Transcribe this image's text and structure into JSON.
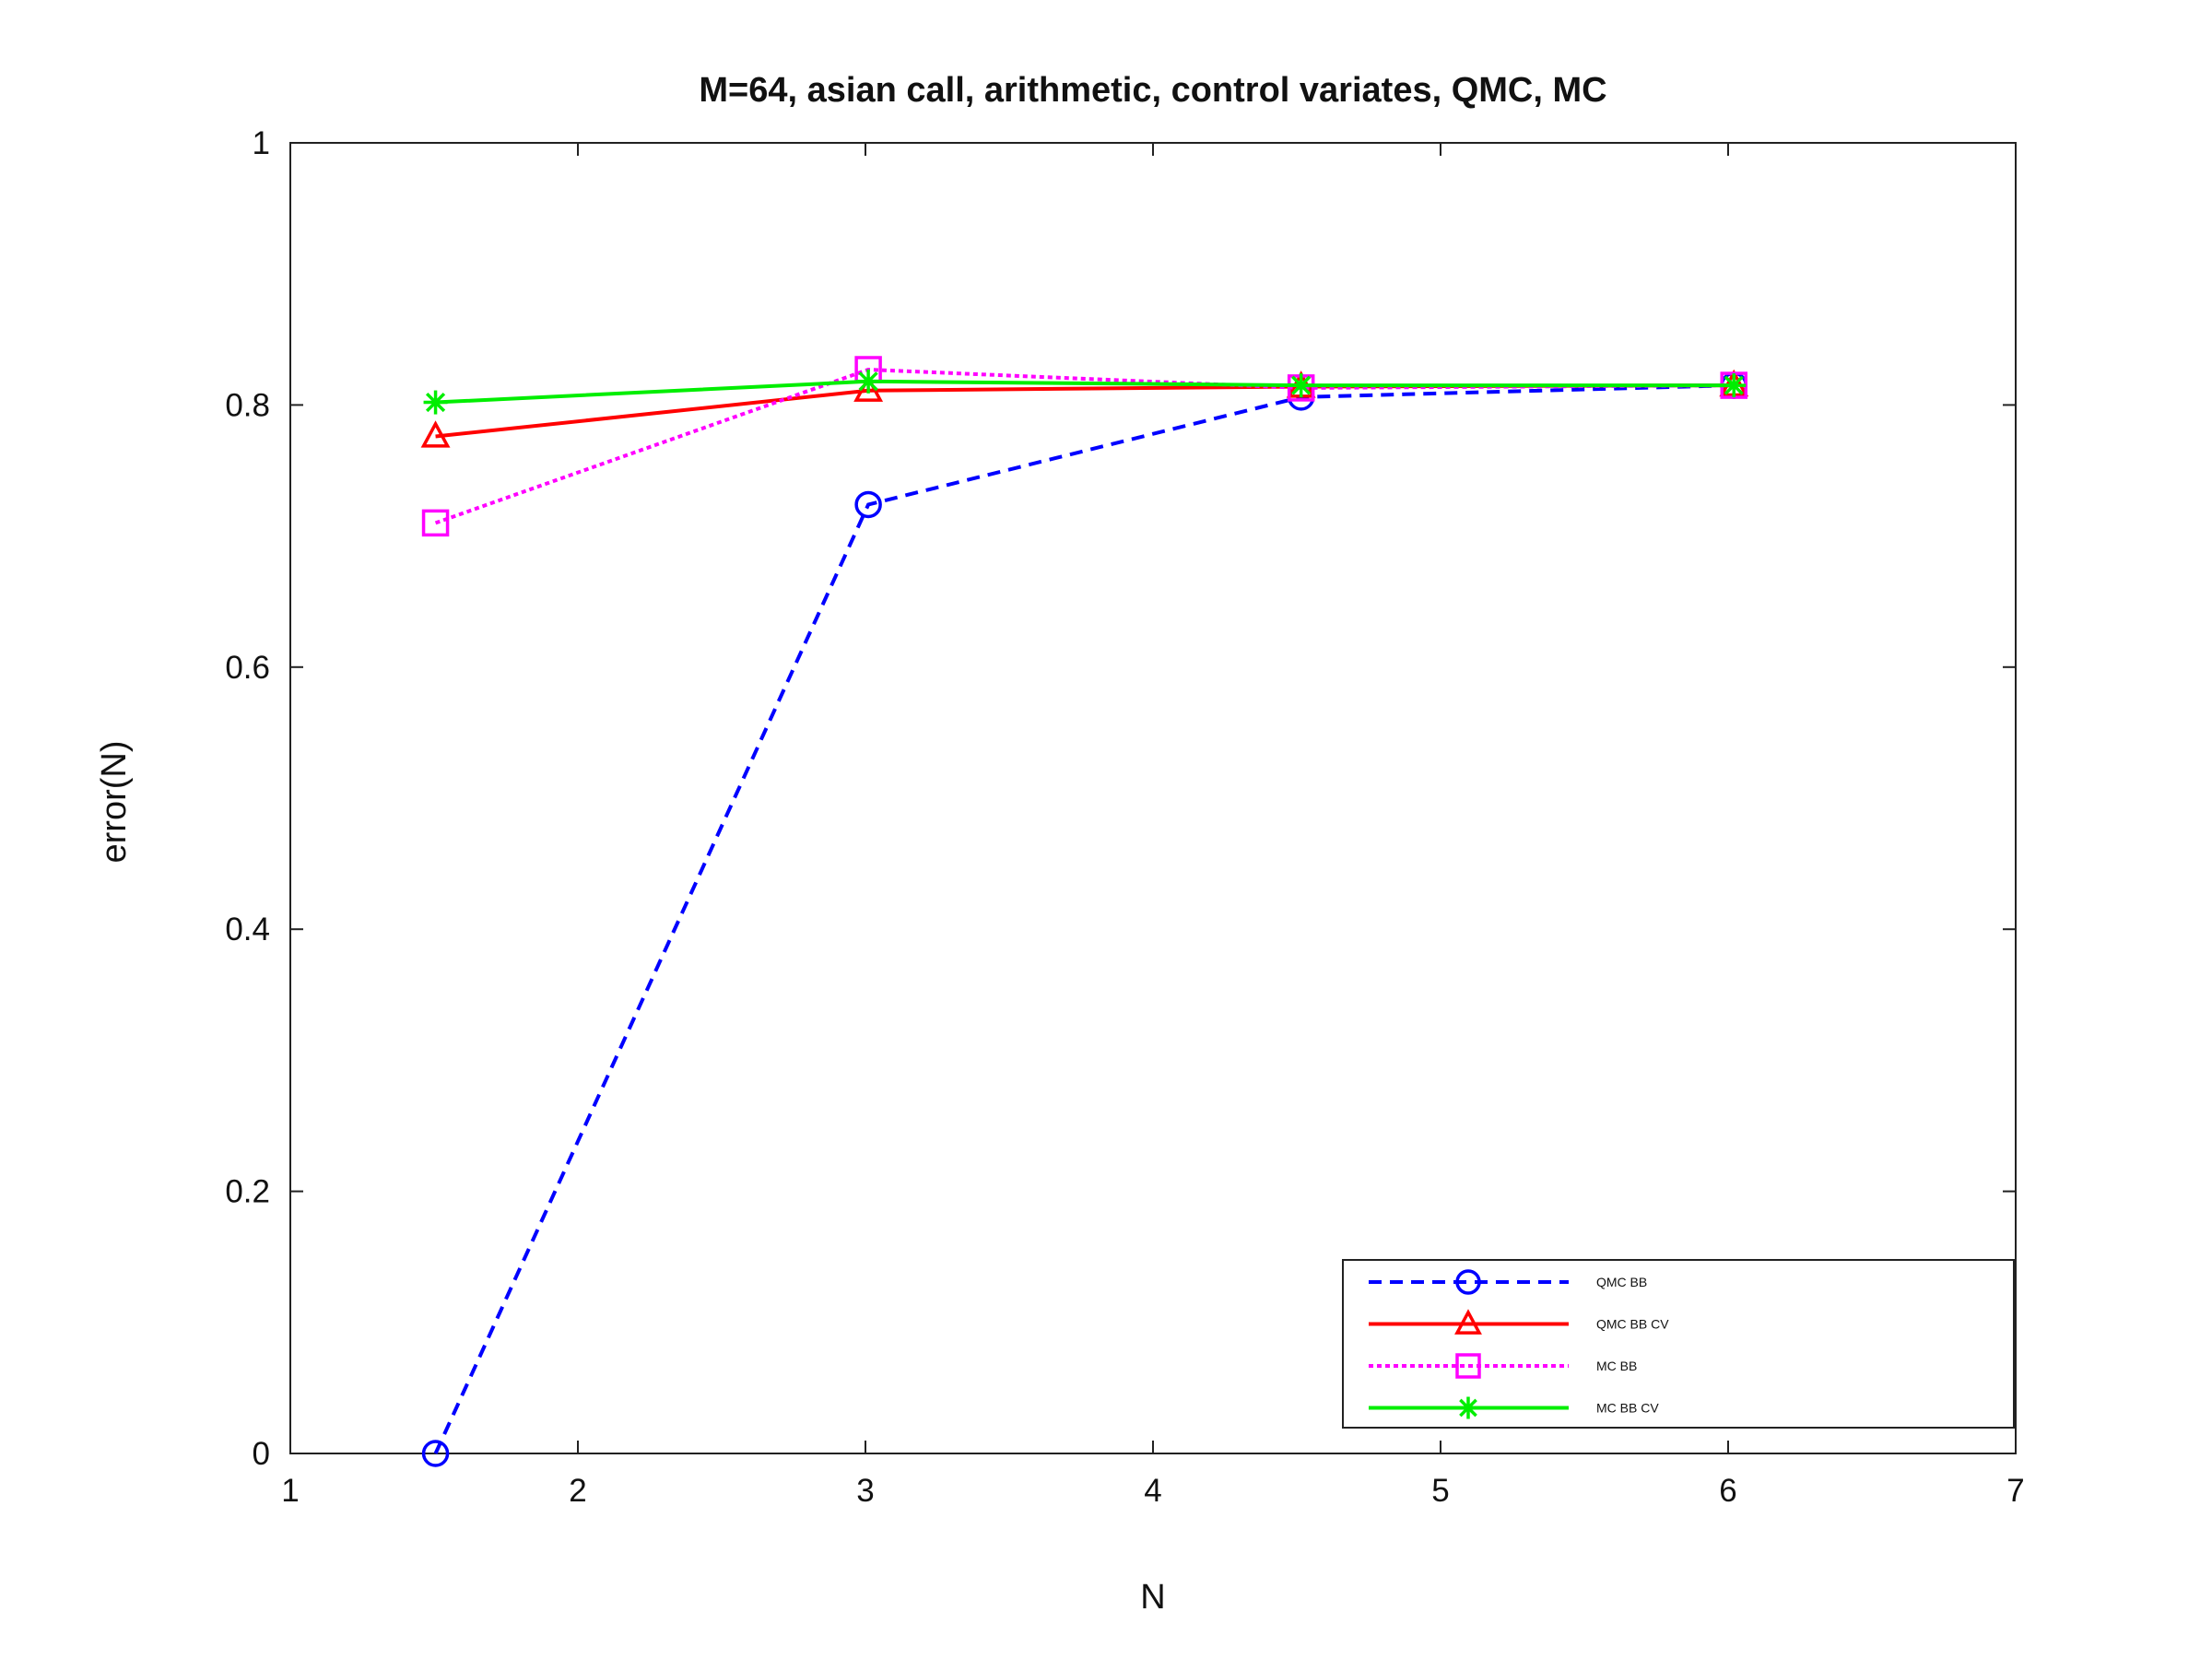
{
  "chart_data": {
    "type": "line",
    "title": "M=64, asian call, arithmetic, control variates, QMC, MC",
    "xlabel": "N",
    "ylabel": "error(N)",
    "xlim": [
      1,
      7
    ],
    "ylim": [
      0,
      1
    ],
    "xticks": [
      1,
      2,
      3,
      4,
      5,
      6,
      7
    ],
    "yticks": [
      0,
      0.2,
      0.4,
      0.6,
      0.8,
      1
    ],
    "xtick_labels": [
      "1",
      "2",
      "3",
      "4",
      "5",
      "6",
      "7"
    ],
    "ytick_labels": [
      "0",
      "0.2",
      "0.4",
      "0.6",
      "0.8",
      "1"
    ],
    "grid": false,
    "legend_position": "bottom-right",
    "x": [
      1.505,
      3.01,
      4.515,
      6.02
    ],
    "series": [
      {
        "name": "QMC BB",
        "values": [
          0.0,
          0.724,
          0.806,
          0.815
        ],
        "color": "#0000ff",
        "line_style": "dashed",
        "marker": "circle"
      },
      {
        "name": "QMC BB CV",
        "values": [
          0.776,
          0.811,
          0.814,
          0.815
        ],
        "color": "#ff0000",
        "line_style": "solid",
        "marker": "triangle"
      },
      {
        "name": "MC BB",
        "values": [
          0.71,
          0.827,
          0.813,
          0.815
        ],
        "color": "#ff00ff",
        "line_style": "dotted",
        "marker": "square"
      },
      {
        "name": "MC BB CV",
        "values": [
          0.802,
          0.818,
          0.815,
          0.815
        ],
        "color": "#00ee00",
        "line_style": "solid",
        "marker": "asterisk"
      }
    ]
  }
}
